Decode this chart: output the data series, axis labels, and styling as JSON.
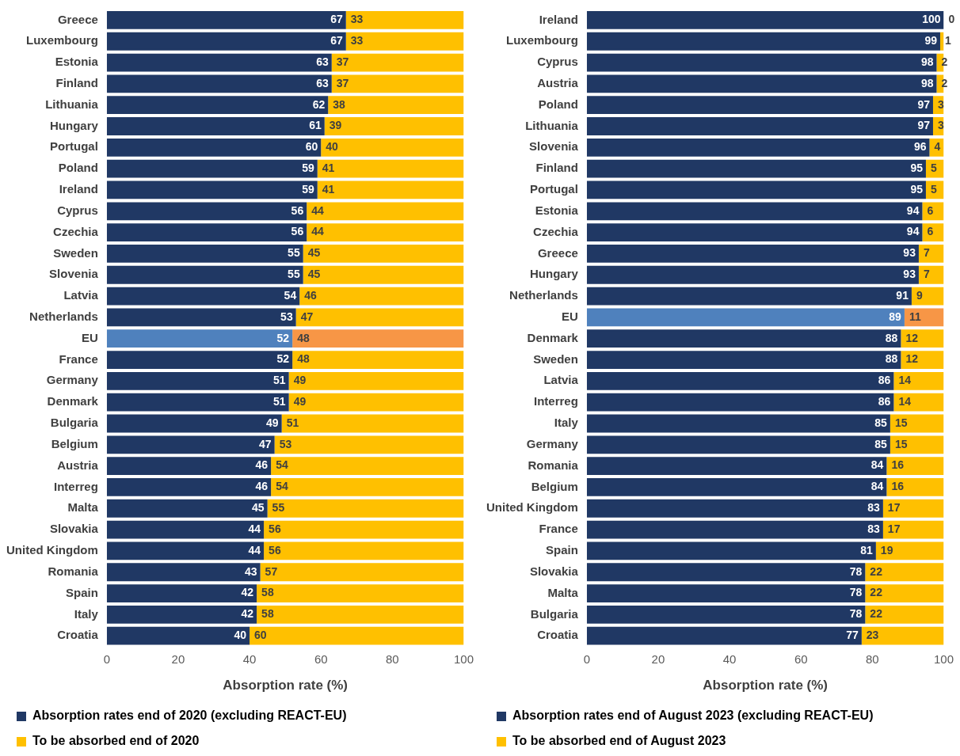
{
  "chart_data": [
    {
      "type": "bar",
      "orientation": "horizontal",
      "stacked": true,
      "data_labels": true,
      "grid": false,
      "legend": "bottom",
      "xlabel": "Absorption rate (%)",
      "xlim": [
        0,
        100
      ],
      "xticks": [
        0,
        20,
        40,
        60,
        80,
        100
      ],
      "categories": [
        "Greece",
        "Luxembourg",
        "Estonia",
        "Finland",
        "Lithuania",
        "Hungary",
        "Portugal",
        "Poland",
        "Ireland",
        "Cyprus",
        "Czechia",
        "Sweden",
        "Slovenia",
        "Latvia",
        "Netherlands",
        "EU",
        "France",
        "Germany",
        "Denmark",
        "Bulgaria",
        "Belgium",
        "Austria",
        "Interreg",
        "Malta",
        "Slovakia",
        "United Kingdom",
        "Romania",
        "Spain",
        "Italy",
        "Croatia"
      ],
      "series": [
        {
          "name": "Absorption rates end of 2020 (excluding REACT-EU)",
          "color": "#203864",
          "colors": [
            "#203864",
            "#203864",
            "#203864",
            "#203864",
            "#203864",
            "#203864",
            "#203864",
            "#203864",
            "#203864",
            "#203864",
            "#203864",
            "#203864",
            "#203864",
            "#203864",
            "#203864",
            "#4f81bd",
            "#203864",
            "#203864",
            "#203864",
            "#203864",
            "#203864",
            "#203864",
            "#203864",
            "#203864",
            "#203864",
            "#203864",
            "#203864",
            "#203864",
            "#203864",
            "#203864"
          ],
          "values": [
            67,
            67,
            63,
            63,
            62,
            61,
            60,
            59,
            59,
            56,
            56,
            55,
            55,
            54,
            53,
            52,
            52,
            51,
            51,
            49,
            47,
            46,
            46,
            45,
            44,
            44,
            43,
            42,
            42,
            40
          ]
        },
        {
          "name": "To be absorbed end of 2020",
          "color": "#ffc000",
          "colors": [
            "#ffc000",
            "#ffc000",
            "#ffc000",
            "#ffc000",
            "#ffc000",
            "#ffc000",
            "#ffc000",
            "#ffc000",
            "#ffc000",
            "#ffc000",
            "#ffc000",
            "#ffc000",
            "#ffc000",
            "#ffc000",
            "#ffc000",
            "#f79646",
            "#ffc000",
            "#ffc000",
            "#ffc000",
            "#ffc000",
            "#ffc000",
            "#ffc000",
            "#ffc000",
            "#ffc000",
            "#ffc000",
            "#ffc000",
            "#ffc000",
            "#ffc000",
            "#ffc000",
            "#ffc000"
          ],
          "values": [
            33,
            33,
            37,
            37,
            38,
            39,
            40,
            41,
            41,
            44,
            44,
            45,
            45,
            46,
            47,
            48,
            48,
            49,
            49,
            51,
            53,
            54,
            54,
            55,
            56,
            56,
            57,
            58,
            58,
            60
          ]
        }
      ]
    },
    {
      "type": "bar",
      "orientation": "horizontal",
      "stacked": true,
      "data_labels": true,
      "grid": false,
      "legend": "bottom",
      "xlabel": "Absorption rate (%)",
      "xlim": [
        0,
        100
      ],
      "xticks": [
        0,
        20,
        40,
        60,
        80,
        100
      ],
      "categories": [
        "Ireland",
        "Luxembourg",
        "Cyprus",
        "Austria",
        "Poland",
        "Lithuania",
        "Slovenia",
        "Finland",
        "Portugal",
        "Estonia",
        "Czechia",
        "Greece",
        "Hungary",
        "Netherlands",
        "EU",
        "Denmark",
        "Sweden",
        "Latvia",
        "Interreg",
        "Italy",
        "Germany",
        "Romania",
        "Belgium",
        "United Kingdom",
        "France",
        "Spain",
        "Slovakia",
        "Malta",
        "Bulgaria",
        "Croatia"
      ],
      "series": [
        {
          "name": "Absorption rates end of August 2023 (excluding REACT-EU)",
          "color": "#203864",
          "colors": [
            "#203864",
            "#203864",
            "#203864",
            "#203864",
            "#203864",
            "#203864",
            "#203864",
            "#203864",
            "#203864",
            "#203864",
            "#203864",
            "#203864",
            "#203864",
            "#203864",
            "#4f81bd",
            "#203864",
            "#203864",
            "#203864",
            "#203864",
            "#203864",
            "#203864",
            "#203864",
            "#203864",
            "#203864",
            "#203864",
            "#203864",
            "#203864",
            "#203864",
            "#203864",
            "#203864"
          ],
          "values": [
            100,
            99,
            98,
            98,
            97,
            97,
            96,
            95,
            95,
            94,
            94,
            93,
            93,
            91,
            89,
            88,
            88,
            86,
            86,
            85,
            85,
            84,
            84,
            83,
            83,
            81,
            78,
            78,
            78,
            77
          ]
        },
        {
          "name": "To be absorbed end of August 2023",
          "color": "#ffc000",
          "colors": [
            "#ffc000",
            "#ffc000",
            "#ffc000",
            "#ffc000",
            "#ffc000",
            "#ffc000",
            "#ffc000",
            "#ffc000",
            "#ffc000",
            "#ffc000",
            "#ffc000",
            "#ffc000",
            "#ffc000",
            "#ffc000",
            "#f79646",
            "#ffc000",
            "#ffc000",
            "#ffc000",
            "#ffc000",
            "#ffc000",
            "#ffc000",
            "#ffc000",
            "#ffc000",
            "#ffc000",
            "#ffc000",
            "#ffc000",
            "#ffc000",
            "#ffc000",
            "#ffc000",
            "#ffc000"
          ],
          "values": [
            0,
            1,
            2,
            2,
            3,
            3,
            4,
            5,
            5,
            6,
            6,
            7,
            7,
            9,
            11,
            12,
            12,
            14,
            14,
            15,
            15,
            16,
            16,
            17,
            17,
            19,
            22,
            22,
            22,
            23
          ]
        }
      ]
    }
  ]
}
